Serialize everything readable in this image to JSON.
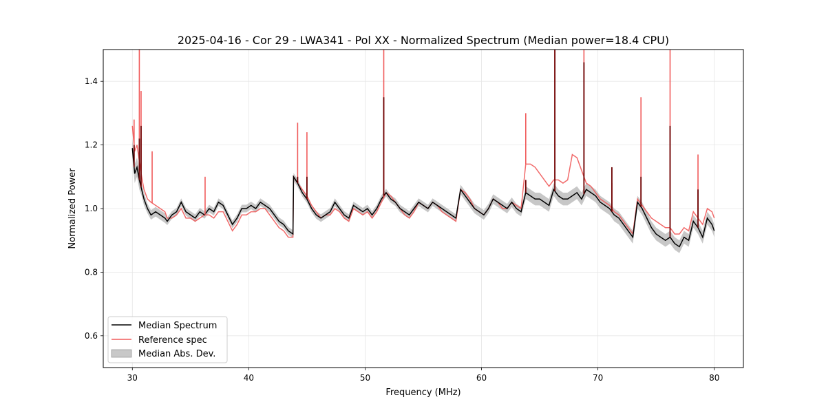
{
  "chart_data": {
    "type": "line",
    "title": "2025-04-16 - Cor 29 - LWA341 - Pol XX - Normalized Spectrum (Median power=18.4 CPU)",
    "xlabel": "Frequency (MHz)",
    "ylabel": "Normalized Power",
    "xlim": [
      27.5,
      82.5
    ],
    "ylim": [
      0.5,
      1.5
    ],
    "xticks": [
      30,
      40,
      50,
      60,
      70,
      80
    ],
    "yticks": [
      0.6,
      0.8,
      1.0,
      1.2,
      1.4
    ],
    "xtick_labels": [
      "30",
      "40",
      "50",
      "60",
      "70",
      "80"
    ],
    "ytick_labels": [
      "0.6",
      "0.8",
      "1.0",
      "1.2",
      "1.4"
    ],
    "grid": true,
    "legend_position": "lower-left",
    "colors": {
      "median": "#000000",
      "reference": "#f05a5a",
      "mad": "#b4b4b4"
    },
    "series": [
      {
        "name": "Median Spectrum",
        "x": [
          30.0,
          30.2,
          30.4,
          30.6,
          30.8,
          31.0,
          31.3,
          31.6,
          32.0,
          32.4,
          32.8,
          33.0,
          33.4,
          33.8,
          34.2,
          34.6,
          35.0,
          35.4,
          35.8,
          36.2,
          36.6,
          37.0,
          37.4,
          37.8,
          38.2,
          38.6,
          39.0,
          39.4,
          39.8,
          40.2,
          40.6,
          41.0,
          41.4,
          41.8,
          42.2,
          42.6,
          43.0,
          43.4,
          43.8,
          43.85,
          44.2,
          44.6,
          45.0,
          45.4,
          45.8,
          46.2,
          46.6,
          47.0,
          47.4,
          47.8,
          48.2,
          48.6,
          49.0,
          49.4,
          49.8,
          50.2,
          50.6,
          51.0,
          51.4,
          51.8,
          52.2,
          52.6,
          53.0,
          53.4,
          53.8,
          54.2,
          54.6,
          55.0,
          55.4,
          55.8,
          56.2,
          56.6,
          57.0,
          57.4,
          57.8,
          58.2,
          58.6,
          59.0,
          59.4,
          59.8,
          60.2,
          60.6,
          61.0,
          61.4,
          61.8,
          62.2,
          62.6,
          63.0,
          63.4,
          63.8,
          64.2,
          64.6,
          65.0,
          65.4,
          65.8,
          66.2,
          66.6,
          67.0,
          67.4,
          67.8,
          68.2,
          68.6,
          69.0,
          69.4,
          69.8,
          70.2,
          70.6,
          71.0,
          71.4,
          71.8,
          72.2,
          72.6,
          73.0,
          73.4,
          73.8,
          74.2,
          74.6,
          75.0,
          75.4,
          75.8,
          76.2,
          76.6,
          77.0,
          77.4,
          77.8,
          78.2,
          78.6,
          79.0,
          79.4,
          79.8,
          80.0
        ],
        "values": [
          1.19,
          1.11,
          1.13,
          1.09,
          1.06,
          1.03,
          1.0,
          0.98,
          0.99,
          0.98,
          0.97,
          0.96,
          0.98,
          0.99,
          1.02,
          0.99,
          0.98,
          0.97,
          0.99,
          0.98,
          1.0,
          0.99,
          1.02,
          1.01,
          0.98,
          0.95,
          0.97,
          1.0,
          1.0,
          1.01,
          1.0,
          1.02,
          1.01,
          1.0,
          0.98,
          0.96,
          0.95,
          0.93,
          0.92,
          1.1,
          1.08,
          1.05,
          1.03,
          1.0,
          0.98,
          0.97,
          0.98,
          0.99,
          1.02,
          1.0,
          0.98,
          0.97,
          1.01,
          1.0,
          0.99,
          1.0,
          0.98,
          1.0,
          1.03,
          1.05,
          1.03,
          1.02,
          1.0,
          0.99,
          0.98,
          1.0,
          1.02,
          1.01,
          1.0,
          1.02,
          1.01,
          1.0,
          0.99,
          0.98,
          0.97,
          1.06,
          1.04,
          1.02,
          1.0,
          0.99,
          0.98,
          1.0,
          1.03,
          1.02,
          1.01,
          1.0,
          1.02,
          1.0,
          0.99,
          1.05,
          1.04,
          1.03,
          1.03,
          1.02,
          1.01,
          1.06,
          1.04,
          1.03,
          1.03,
          1.04,
          1.05,
          1.03,
          1.06,
          1.05,
          1.04,
          1.02,
          1.01,
          1.0,
          0.98,
          0.97,
          0.95,
          0.93,
          0.91,
          1.02,
          1.0,
          0.97,
          0.94,
          0.92,
          0.91,
          0.9,
          0.91,
          0.89,
          0.88,
          0.91,
          0.9,
          0.96,
          0.94,
          0.91,
          0.97,
          0.95,
          0.93
        ]
      },
      {
        "name": "Reference spec",
        "x": [
          30.0,
          30.2,
          30.4,
          30.6,
          30.8,
          31.0,
          31.3,
          31.6,
          32.0,
          32.4,
          32.8,
          33.0,
          33.4,
          33.8,
          34.2,
          34.6,
          35.0,
          35.4,
          35.8,
          36.2,
          36.6,
          37.0,
          37.4,
          37.8,
          38.2,
          38.6,
          39.0,
          39.4,
          39.8,
          40.2,
          40.6,
          41.0,
          41.4,
          41.8,
          42.2,
          42.6,
          43.0,
          43.4,
          43.8,
          43.85,
          44.2,
          44.6,
          45.0,
          45.4,
          45.8,
          46.2,
          46.6,
          47.0,
          47.4,
          47.8,
          48.2,
          48.6,
          49.0,
          49.4,
          49.8,
          50.2,
          50.6,
          51.0,
          51.4,
          51.8,
          52.2,
          52.6,
          53.0,
          53.4,
          53.8,
          54.2,
          54.6,
          55.0,
          55.4,
          55.8,
          56.2,
          56.6,
          57.0,
          57.4,
          57.8,
          58.2,
          58.6,
          59.0,
          59.4,
          59.8,
          60.2,
          60.6,
          61.0,
          61.4,
          61.8,
          62.2,
          62.6,
          63.0,
          63.4,
          63.8,
          64.2,
          64.6,
          65.0,
          65.4,
          65.8,
          66.2,
          66.6,
          67.0,
          67.4,
          67.8,
          68.2,
          68.6,
          69.0,
          69.4,
          69.8,
          70.2,
          70.6,
          71.0,
          71.4,
          71.8,
          72.2,
          72.6,
          73.0,
          73.4,
          73.8,
          74.2,
          74.6,
          75.0,
          75.4,
          75.8,
          76.2,
          76.6,
          77.0,
          77.4,
          77.8,
          78.2,
          78.6,
          79.0,
          79.4,
          79.8,
          80.0
        ],
        "values": [
          1.26,
          1.18,
          1.2,
          1.15,
          1.1,
          1.06,
          1.03,
          1.02,
          1.01,
          1.0,
          0.99,
          0.97,
          0.97,
          0.98,
          1.0,
          0.97,
          0.97,
          0.96,
          0.97,
          0.98,
          0.98,
          0.97,
          0.99,
          0.99,
          0.96,
          0.93,
          0.95,
          0.98,
          0.98,
          0.99,
          0.99,
          1.0,
          1.0,
          0.98,
          0.96,
          0.94,
          0.93,
          0.91,
          0.91,
          1.1,
          1.08,
          1.06,
          1.04,
          1.01,
          0.99,
          0.97,
          0.98,
          0.98,
          1.0,
          0.99,
          0.97,
          0.96,
          1.0,
          0.99,
          0.98,
          0.99,
          0.97,
          0.99,
          1.02,
          1.05,
          1.04,
          1.02,
          1.0,
          0.98,
          0.97,
          0.99,
          1.02,
          1.01,
          1.0,
          1.02,
          1.01,
          0.99,
          0.98,
          0.97,
          0.96,
          1.06,
          1.05,
          1.03,
          1.0,
          0.99,
          0.98,
          1.0,
          1.03,
          1.02,
          1.0,
          1.0,
          1.02,
          1.01,
          1.0,
          1.14,
          1.14,
          1.13,
          1.11,
          1.09,
          1.07,
          1.09,
          1.09,
          1.08,
          1.09,
          1.17,
          1.16,
          1.12,
          1.08,
          1.07,
          1.05,
          1.03,
          1.02,
          1.01,
          0.99,
          0.98,
          0.96,
          0.94,
          0.92,
          1.03,
          1.01,
          0.99,
          0.97,
          0.96,
          0.95,
          0.94,
          0.94,
          0.92,
          0.92,
          0.94,
          0.93,
          0.99,
          0.97,
          0.95,
          1.0,
          0.99,
          0.97
        ]
      },
      {
        "name": "Median Abs. Dev.",
        "type": "band",
        "of_series": "Median Spectrum",
        "half_width": [
          0.03,
          0.03,
          0.03,
          0.03,
          0.02,
          0.02,
          0.015,
          0.015,
          0.015,
          0.015,
          0.015,
          0.012,
          0.012,
          0.012,
          0.012,
          0.012,
          0.012,
          0.012,
          0.012,
          0.012,
          0.012,
          0.012,
          0.012,
          0.012,
          0.012,
          0.012,
          0.012,
          0.012,
          0.012,
          0.012,
          0.012,
          0.012,
          0.012,
          0.012,
          0.012,
          0.012,
          0.012,
          0.012,
          0.012,
          0.012,
          0.012,
          0.012,
          0.012,
          0.012,
          0.012,
          0.012,
          0.012,
          0.012,
          0.012,
          0.012,
          0.012,
          0.012,
          0.012,
          0.012,
          0.012,
          0.012,
          0.012,
          0.012,
          0.012,
          0.012,
          0.012,
          0.012,
          0.012,
          0.012,
          0.012,
          0.012,
          0.012,
          0.012,
          0.012,
          0.012,
          0.012,
          0.012,
          0.012,
          0.012,
          0.012,
          0.015,
          0.015,
          0.015,
          0.015,
          0.015,
          0.015,
          0.015,
          0.015,
          0.015,
          0.015,
          0.015,
          0.015,
          0.015,
          0.015,
          0.02,
          0.02,
          0.02,
          0.02,
          0.02,
          0.02,
          0.02,
          0.02,
          0.02,
          0.02,
          0.02,
          0.02,
          0.02,
          0.02,
          0.02,
          0.02,
          0.02,
          0.02,
          0.02,
          0.02,
          0.02,
          0.02,
          0.02,
          0.02,
          0.02,
          0.02,
          0.02,
          0.02,
          0.02,
          0.02,
          0.02,
          0.02,
          0.02,
          0.02,
          0.02,
          0.02,
          0.02,
          0.02,
          0.02,
          0.02,
          0.02,
          0.02
        ]
      }
    ],
    "spikes": {
      "reference": [
        [
          30.15,
          1.28
        ],
        [
          30.6,
          1.5
        ],
        [
          30.75,
          1.37
        ],
        [
          31.7,
          1.18
        ],
        [
          36.25,
          1.1
        ],
        [
          44.2,
          1.27
        ],
        [
          45.0,
          1.24
        ],
        [
          51.6,
          1.5
        ],
        [
          63.8,
          1.3
        ],
        [
          66.3,
          1.5
        ],
        [
          68.8,
          1.5
        ],
        [
          71.2,
          1.08
        ],
        [
          73.7,
          1.35
        ],
        [
          76.2,
          1.5
        ],
        [
          78.6,
          1.17
        ]
      ],
      "median": [
        [
          30.15,
          1.2
        ],
        [
          30.6,
          1.22
        ],
        [
          30.75,
          1.26
        ],
        [
          44.2,
          1.1
        ],
        [
          45.0,
          1.1
        ],
        [
          51.6,
          1.35
        ],
        [
          63.8,
          1.09
        ],
        [
          66.3,
          1.5
        ],
        [
          68.8,
          1.46
        ],
        [
          71.2,
          1.13
        ],
        [
          73.7,
          1.1
        ],
        [
          76.2,
          1.26
        ],
        [
          78.6,
          1.06
        ]
      ]
    },
    "legend": {
      "median_label": "Median Spectrum",
      "reference_label": "Reference spec",
      "mad_label": "Median Abs. Dev."
    }
  }
}
